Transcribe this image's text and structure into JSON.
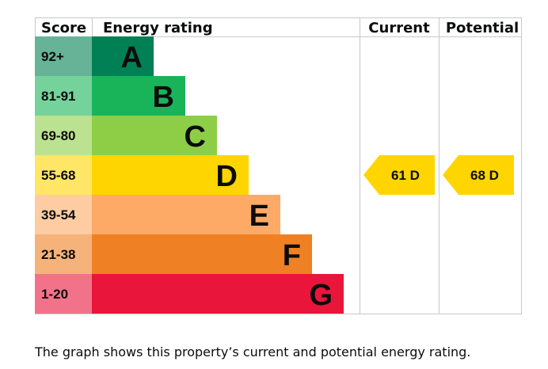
{
  "chart_data": {
    "type": "bar",
    "headers": {
      "score": "Score",
      "rating": "Energy rating",
      "current": "Current",
      "potential": "Potential"
    },
    "bands": [
      {
        "score": "92+",
        "letter": "A",
        "color": "#008054",
        "score_bg": "#66b398",
        "level": 1
      },
      {
        "score": "81-91",
        "letter": "B",
        "color": "#19b459",
        "score_bg": "#75d29b",
        "level": 2
      },
      {
        "score": "69-80",
        "letter": "C",
        "color": "#8dce46",
        "score_bg": "#bbe290",
        "level": 3
      },
      {
        "score": "55-68",
        "letter": "D",
        "color": "#ffd500",
        "score_bg": "#ffe666",
        "level": 4
      },
      {
        "score": "39-54",
        "letter": "E",
        "color": "#fcaa65",
        "score_bg": "#fdcca3",
        "level": 5
      },
      {
        "score": "21-38",
        "letter": "F",
        "color": "#ef8023",
        "score_bg": "#f5b37b",
        "level": 6
      },
      {
        "score": "1-20",
        "letter": "G",
        "color": "#e9153b",
        "score_bg": "#f27389",
        "level": 7
      }
    ],
    "current": {
      "label": "61 D",
      "band": "D",
      "color": "#ffd500"
    },
    "potential": {
      "label": "68 D",
      "band": "D",
      "color": "#ffd500"
    }
  },
  "caption": "The graph shows this property’s current and potential energy rating."
}
